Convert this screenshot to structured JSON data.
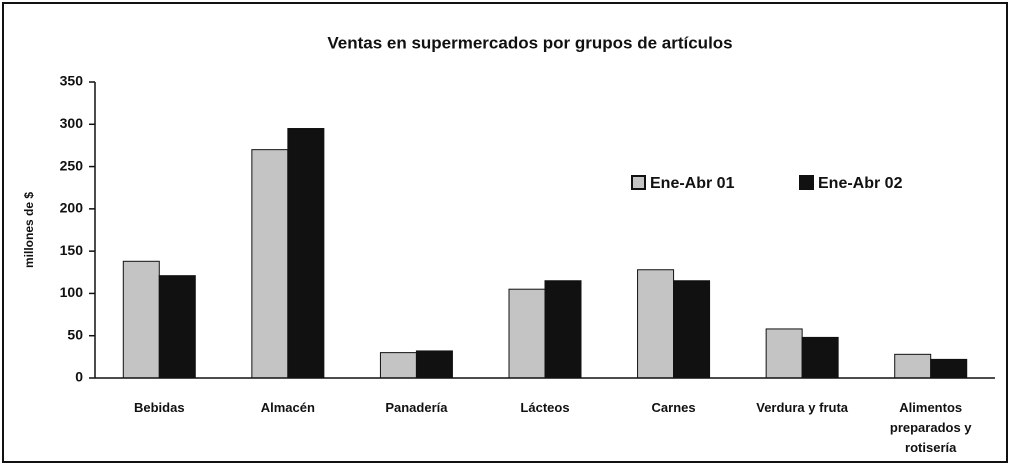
{
  "chart_data": {
    "type": "bar",
    "title": "Ventas en supermercados por grupos de artículos",
    "ylabel": "millones de $",
    "categories": [
      "Bebidas",
      "Almacén",
      "Panadería",
      "Lácteos",
      "Carnes",
      "Verdura y fruta",
      "Alimentos preparados y rotisería"
    ],
    "series": [
      {
        "name": "Ene-Abr 01",
        "color": "#c4c4c4",
        "values": [
          138,
          270,
          30,
          105,
          128,
          58,
          28
        ]
      },
      {
        "name": "Ene-Abr 02",
        "color": "#111111",
        "values": [
          121,
          295,
          32,
          115,
          115,
          48,
          22
        ]
      }
    ],
    "ylim": [
      0,
      350
    ],
    "yticks": [
      0,
      50,
      100,
      150,
      200,
      250,
      300,
      350
    ],
    "legend": "upper right",
    "grid": false
  }
}
